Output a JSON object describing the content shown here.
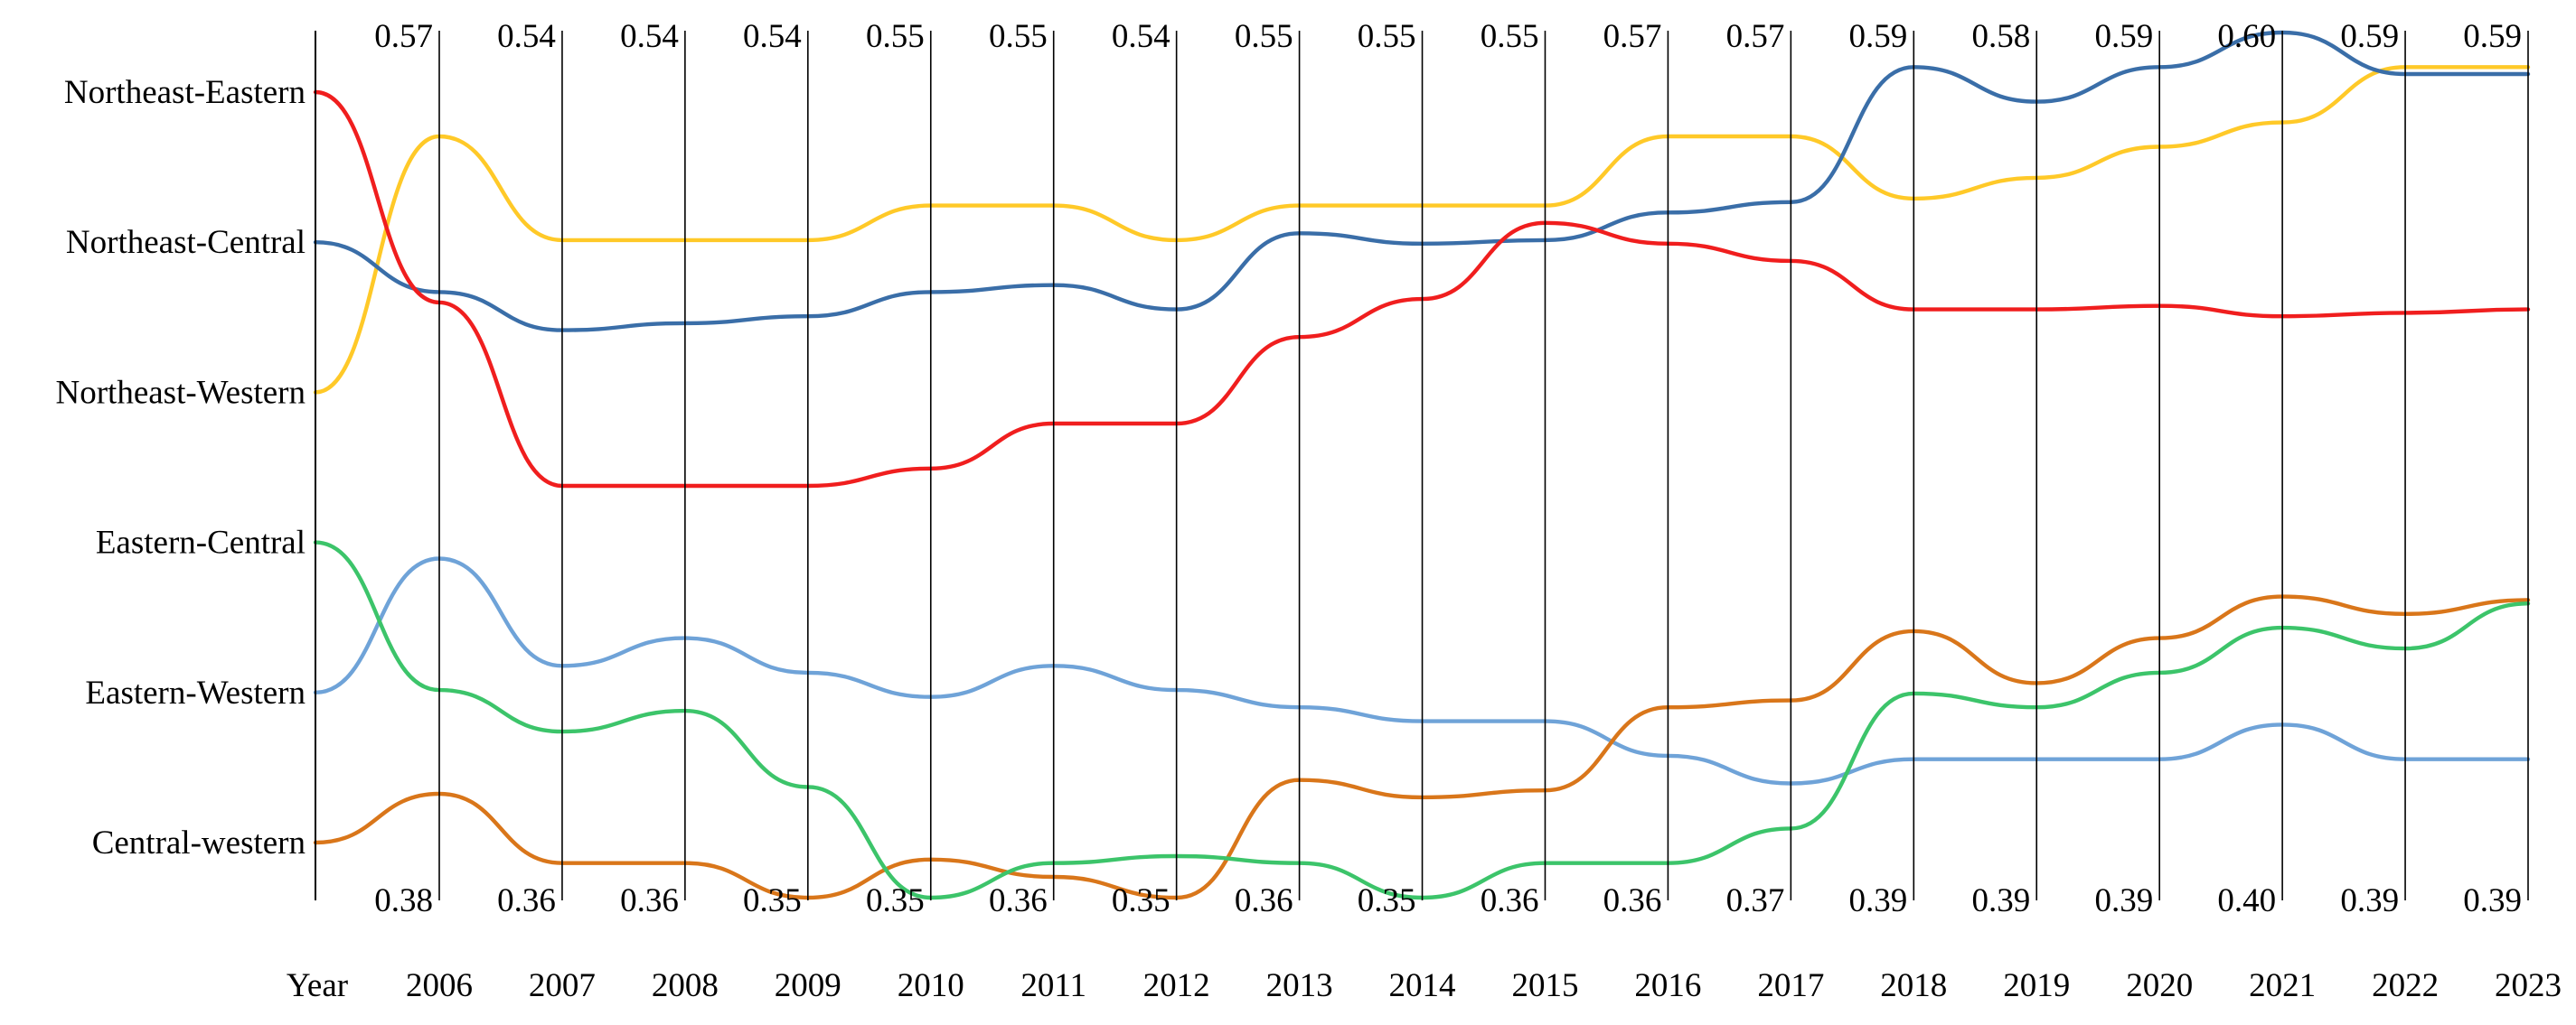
{
  "chart_data": {
    "type": "line",
    "title": "",
    "axis_name": "Year",
    "categories": [
      "Central-western",
      "Eastern-Western",
      "Eastern-Central",
      "Northeast-Western",
      "Northeast-Central",
      "Northeast-Eastern"
    ],
    "x": [
      "2006",
      "2007",
      "2008",
      "2009",
      "2010",
      "2011",
      "2012",
      "2013",
      "2014",
      "2015",
      "2016",
      "2017",
      "2018",
      "2019",
      "2020",
      "2021",
      "2022",
      "2023"
    ],
    "max_labels": [
      "0.57",
      "0.54",
      "0.54",
      "0.54",
      "0.55",
      "0.55",
      "0.54",
      "0.55",
      "0.55",
      "0.55",
      "0.57",
      "0.57",
      "0.59",
      "0.58",
      "0.59",
      "0.60",
      "0.59",
      "0.59"
    ],
    "min_labels": [
      "0.38",
      "0.36",
      "0.36",
      "0.35",
      "0.35",
      "0.36",
      "0.35",
      "0.36",
      "0.35",
      "0.36",
      "0.36",
      "0.37",
      "0.39",
      "0.39",
      "0.39",
      "0.40",
      "0.39",
      "0.39"
    ],
    "grid": true,
    "series": [
      {
        "name": "Northeast-Western",
        "color": "#FFC928",
        "start_rank": 3,
        "values": [
          0.57,
          0.54,
          0.54,
          0.54,
          0.55,
          0.55,
          0.54,
          0.55,
          0.55,
          0.55,
          0.57,
          0.57,
          0.552,
          0.558,
          0.567,
          0.574,
          0.59,
          0.59
        ]
      },
      {
        "name": "Northeast-Central",
        "color": "#3A6EA8",
        "start_rank": 4,
        "values": [
          0.525,
          0.514,
          0.516,
          0.518,
          0.525,
          0.527,
          0.52,
          0.542,
          0.539,
          0.54,
          0.548,
          0.551,
          0.59,
          0.58,
          0.59,
          0.6,
          0.588,
          0.588
        ]
      },
      {
        "name": "Northeast-Eastern",
        "color": "#F01E1E",
        "start_rank": 5,
        "values": [
          0.522,
          0.469,
          0.469,
          0.469,
          0.474,
          0.487,
          0.487,
          0.512,
          0.523,
          0.545,
          0.539,
          0.534,
          0.52,
          0.52,
          0.521,
          0.518,
          0.519,
          0.52
        ]
      },
      {
        "name": "Eastern-Western",
        "color": "#6FA3D8",
        "start_rank": 1,
        "values": [
          0.448,
          0.417,
          0.425,
          0.415,
          0.408,
          0.417,
          0.41,
          0.405,
          0.401,
          0.401,
          0.391,
          0.383,
          0.39,
          0.39,
          0.39,
          0.4,
          0.39,
          0.39
        ]
      },
      {
        "name": "Central-western",
        "color": "#D9761A",
        "start_rank": 0,
        "values": [
          0.38,
          0.36,
          0.36,
          0.35,
          0.361,
          0.356,
          0.35,
          0.384,
          0.379,
          0.381,
          0.405,
          0.407,
          0.427,
          0.412,
          0.425,
          0.437,
          0.432,
          0.436
        ]
      },
      {
        "name": "Eastern-Central",
        "color": "#3CC46A",
        "start_rank": 2,
        "values": [
          0.41,
          0.398,
          0.404,
          0.382,
          0.35,
          0.36,
          0.362,
          0.36,
          0.35,
          0.36,
          0.36,
          0.37,
          0.409,
          0.405,
          0.415,
          0.428,
          0.422,
          0.435
        ]
      }
    ]
  }
}
